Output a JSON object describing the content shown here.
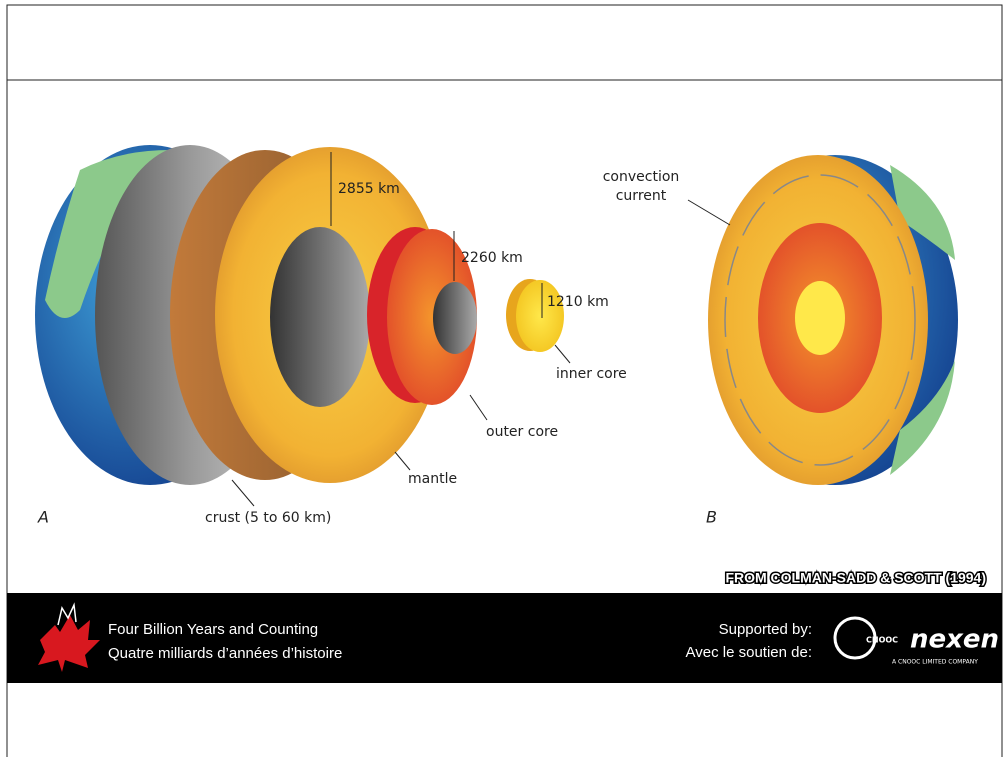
{
  "slide": {
    "figure_a": {
      "label": "A",
      "depths": [
        "2855 km",
        "2260 km",
        "1210 km"
      ],
      "layers": [
        "crust (5 to 60 km)",
        "mantle",
        "outer core",
        "inner core"
      ]
    },
    "figure_b": {
      "label": "B",
      "annotation": [
        "convection",
        "current"
      ]
    },
    "credit": "FROM COLMAN-SADD & SCOTT (1994)",
    "footer": {
      "title_en": "Four Billion Years and Counting",
      "title_fr": "Quatre milliards d’années d’histoire",
      "support_en": "Supported by:",
      "support_fr": "Avec le soutien de:",
      "partner": "CNOOC",
      "sponsor": "nexen",
      "sponsor_tagline": "A CNOOC LIMITED COMPANY"
    }
  }
}
